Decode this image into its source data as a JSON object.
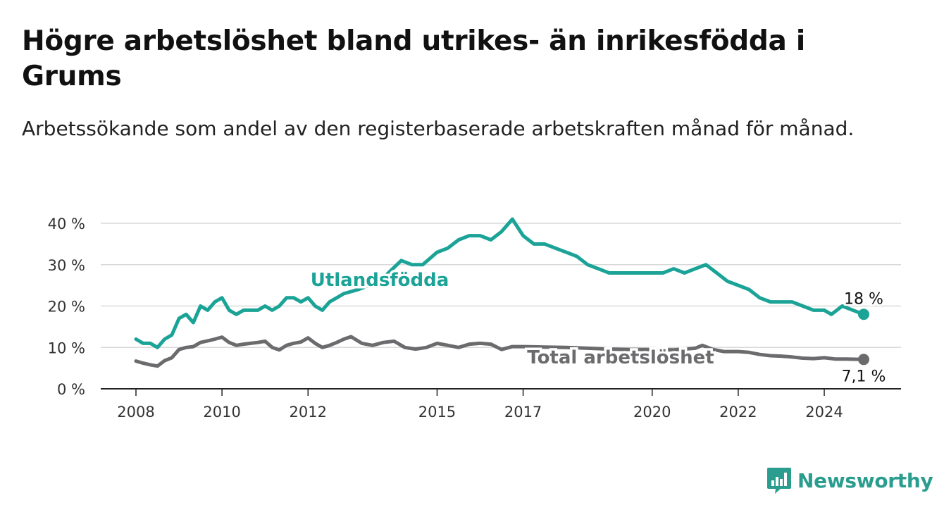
{
  "header": {
    "title": "Högre arbetslöshet bland utrikes- än inrikesfödda i Grums",
    "subtitle": "Arbetssökande som andel av den registerbaserade arbetskraften månad för månad."
  },
  "brand": {
    "name": "Newsworthy",
    "icon": "bar-chart-logo-icon",
    "color": "#2a9d8f"
  },
  "chart_data": {
    "type": "line",
    "x_ticks": [
      "2008",
      "2010",
      "2012",
      "2015",
      "2017",
      "2020",
      "2022",
      "2024"
    ],
    "y_ticks": [
      "0 %",
      "10 %",
      "20 %",
      "30 %",
      "40 %"
    ],
    "ylim": [
      0,
      40
    ],
    "xlim": [
      "2008-01",
      "2024-12"
    ],
    "grid": true,
    "series": [
      {
        "name": "Utlandsfödda",
        "color": "#1aa396",
        "end_label": "18 %",
        "points": [
          [
            "2008-01",
            12
          ],
          [
            "2008-03",
            11
          ],
          [
            "2008-05",
            11
          ],
          [
            "2008-07",
            10
          ],
          [
            "2008-09",
            12
          ],
          [
            "2008-11",
            13
          ],
          [
            "2009-01",
            17
          ],
          [
            "2009-03",
            18
          ],
          [
            "2009-05",
            16
          ],
          [
            "2009-07",
            20
          ],
          [
            "2009-09",
            19
          ],
          [
            "2009-11",
            21
          ],
          [
            "2010-01",
            22
          ],
          [
            "2010-03",
            19
          ],
          [
            "2010-05",
            18
          ],
          [
            "2010-07",
            19
          ],
          [
            "2010-09",
            19
          ],
          [
            "2010-11",
            19
          ],
          [
            "2011-01",
            20
          ],
          [
            "2011-03",
            19
          ],
          [
            "2011-05",
            20
          ],
          [
            "2011-07",
            22
          ],
          [
            "2011-09",
            22
          ],
          [
            "2011-11",
            21
          ],
          [
            "2012-01",
            22
          ],
          [
            "2012-03",
            20
          ],
          [
            "2012-05",
            19
          ],
          [
            "2012-07",
            21
          ],
          [
            "2012-09",
            22
          ],
          [
            "2012-11",
            23
          ],
          [
            "2013-03",
            24
          ],
          [
            "2013-09",
            26
          ],
          [
            "2014-03",
            31
          ],
          [
            "2014-06",
            30
          ],
          [
            "2014-09",
            30
          ],
          [
            "2015-01",
            33
          ],
          [
            "2015-04",
            34
          ],
          [
            "2015-07",
            36
          ],
          [
            "2015-10",
            37
          ],
          [
            "2016-01",
            37
          ],
          [
            "2016-04",
            36
          ],
          [
            "2016-07",
            38
          ],
          [
            "2016-10",
            41
          ],
          [
            "2017-01",
            37
          ],
          [
            "2017-04",
            35
          ],
          [
            "2017-07",
            35
          ],
          [
            "2017-10",
            34
          ],
          [
            "2018-01",
            33
          ],
          [
            "2018-04",
            32
          ],
          [
            "2018-07",
            30
          ],
          [
            "2018-10",
            29
          ],
          [
            "2019-01",
            28
          ],
          [
            "2019-04",
            28
          ],
          [
            "2019-07",
            28
          ],
          [
            "2019-10",
            28
          ],
          [
            "2020-01",
            28
          ],
          [
            "2020-04",
            28
          ],
          [
            "2020-07",
            29
          ],
          [
            "2020-10",
            28
          ],
          [
            "2021-01",
            29
          ],
          [
            "2021-04",
            30
          ],
          [
            "2021-07",
            28
          ],
          [
            "2021-10",
            26
          ],
          [
            "2022-01",
            25
          ],
          [
            "2022-04",
            24
          ],
          [
            "2022-07",
            22
          ],
          [
            "2022-10",
            21
          ],
          [
            "2023-01",
            21
          ],
          [
            "2023-04",
            21
          ],
          [
            "2023-07",
            20
          ],
          [
            "2023-10",
            19
          ],
          [
            "2024-01",
            19
          ],
          [
            "2024-03",
            18
          ],
          [
            "2024-06",
            20
          ],
          [
            "2024-09",
            19
          ],
          [
            "2024-12",
            18
          ]
        ]
      },
      {
        "name": "Total arbetslöshet",
        "color": "#6b6b6e",
        "end_label": "7,1 %",
        "points": [
          [
            "2008-01",
            6.7
          ],
          [
            "2008-03",
            6.2
          ],
          [
            "2008-05",
            5.8
          ],
          [
            "2008-07",
            5.5
          ],
          [
            "2008-09",
            6.8
          ],
          [
            "2008-11",
            7.5
          ],
          [
            "2009-01",
            9.5
          ],
          [
            "2009-03",
            10.0
          ],
          [
            "2009-05",
            10.2
          ],
          [
            "2009-07",
            11.2
          ],
          [
            "2009-09",
            11.6
          ],
          [
            "2009-11",
            12.0
          ],
          [
            "2010-01",
            12.5
          ],
          [
            "2010-03",
            11.2
          ],
          [
            "2010-05",
            10.5
          ],
          [
            "2010-07",
            10.8
          ],
          [
            "2010-09",
            11.0
          ],
          [
            "2010-11",
            11.2
          ],
          [
            "2011-01",
            11.5
          ],
          [
            "2011-03",
            10.0
          ],
          [
            "2011-05",
            9.4
          ],
          [
            "2011-07",
            10.5
          ],
          [
            "2011-09",
            11.0
          ],
          [
            "2011-11",
            11.3
          ],
          [
            "2012-01",
            12.3
          ],
          [
            "2012-03",
            11.0
          ],
          [
            "2012-05",
            10.0
          ],
          [
            "2012-07",
            10.5
          ],
          [
            "2012-09",
            11.2
          ],
          [
            "2012-11",
            12.0
          ],
          [
            "2013-01",
            12.6
          ],
          [
            "2013-04",
            11.0
          ],
          [
            "2013-07",
            10.5
          ],
          [
            "2013-10",
            11.2
          ],
          [
            "2014-01",
            11.5
          ],
          [
            "2014-04",
            10.0
          ],
          [
            "2014-07",
            9.6
          ],
          [
            "2014-10",
            10.0
          ],
          [
            "2015-01",
            11.0
          ],
          [
            "2015-04",
            10.5
          ],
          [
            "2015-07",
            10.0
          ],
          [
            "2015-10",
            10.8
          ],
          [
            "2016-01",
            11.0
          ],
          [
            "2016-04",
            10.8
          ],
          [
            "2016-07",
            9.5
          ],
          [
            "2016-10",
            10.2
          ],
          [
            "2017-01",
            10.2
          ],
          [
            "2017-07",
            10.1
          ],
          [
            "2018-01",
            10.0
          ],
          [
            "2018-07",
            9.8
          ],
          [
            "2019-01",
            9.6
          ],
          [
            "2019-07",
            9.5
          ],
          [
            "2020-01",
            9.5
          ],
          [
            "2020-07",
            9.4
          ],
          [
            "2021-01",
            9.8
          ],
          [
            "2021-03",
            10.5
          ],
          [
            "2021-06",
            9.5
          ],
          [
            "2021-09",
            9.0
          ],
          [
            "2022-01",
            9.0
          ],
          [
            "2022-04",
            8.8
          ],
          [
            "2022-07",
            8.3
          ],
          [
            "2022-10",
            8.0
          ],
          [
            "2023-01",
            7.9
          ],
          [
            "2023-04",
            7.7
          ],
          [
            "2023-07",
            7.4
          ],
          [
            "2023-10",
            7.3
          ],
          [
            "2024-01",
            7.5
          ],
          [
            "2024-04",
            7.2
          ],
          [
            "2024-07",
            7.2
          ],
          [
            "2024-12",
            7.1
          ]
        ]
      }
    ]
  }
}
